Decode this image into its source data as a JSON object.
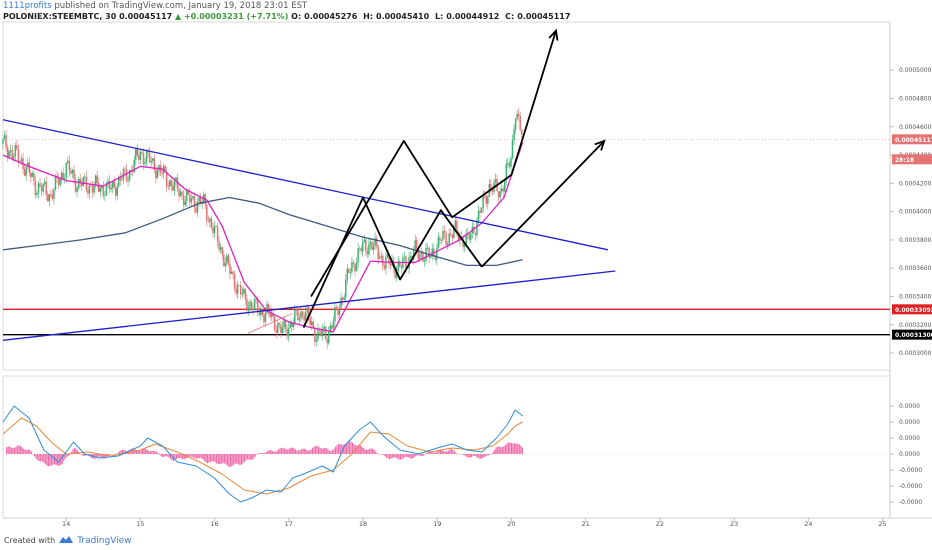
{
  "header": {
    "publisher": "1111profits",
    "published_text": "published on TradingView.com, January 19, 2018 23:01 EST",
    "symbol": "POLONIEX:STEEMBTC, 30",
    "open_val": "0.00045117",
    "change": "▲ +0.00003231 (+7.71%)",
    "o_label": "O:",
    "o": "0.00045276",
    "h_label": "H:",
    "h": "0.00045410",
    "l_label": "L:",
    "l": "0.00044912",
    "c_label": "C:",
    "c": "0.00045117"
  },
  "footer": {
    "created_with": "Created with",
    "brand": "TradingView"
  },
  "colors": {
    "candle_up": "#3cb371",
    "candle_down": "#e57373",
    "ma_fast": "#e020c0",
    "ma_slow": "#3d5a80",
    "trend": "#1f1fcc",
    "support_red": "#e02020",
    "support_black": "#000000",
    "macd": "#2f8fdf",
    "signal": "#e8893a",
    "hist": "#f06aa8"
  },
  "chart_data": [
    {
      "type": "candlestick",
      "x_ticks": [
        "14",
        "15",
        "16",
        "17",
        "18",
        "19",
        "20",
        "21",
        "22",
        "23",
        "24",
        "25"
      ],
      "y_ticks": [
        "0.00050000",
        "0.00048000",
        "0.00046000",
        "0.00044000",
        "0.00042000",
        "0.00040000",
        "0.00038000",
        "0.00036000",
        "0.00034000",
        "0.00032000",
        "0.00030000"
      ],
      "ylim": [
        0.000288,
        0.000532
      ],
      "xlim": [
        13.15,
        25.1
      ],
      "price_labels": [
        {
          "value": 0.00045117,
          "text": "0.00045117",
          "color": "#e57373"
        },
        {
          "value": 0.000437,
          "text": "28:18",
          "color": "#e57373"
        },
        {
          "value": 0.00033092,
          "text": "0.00033092",
          "color": "#e02020"
        },
        {
          "value": 0.000313,
          "text": "0.00031300",
          "color": "#000000"
        }
      ],
      "path": [
        [
          13.15,
          0.000448
        ],
        [
          13.4,
          0.000436
        ],
        [
          13.6,
          0.000418
        ],
        [
          13.8,
          0.000412
        ],
        [
          14.0,
          0.000432
        ],
        [
          14.15,
          0.00042
        ],
        [
          14.35,
          0.000418
        ],
        [
          14.6,
          0.000416
        ],
        [
          14.85,
          0.000428
        ],
        [
          15.0,
          0.000442
        ],
        [
          15.2,
          0.000432
        ],
        [
          15.45,
          0.000418
        ],
        [
          15.65,
          0.000408
        ],
        [
          15.85,
          0.000406
        ],
        [
          16.0,
          0.000385
        ],
        [
          16.2,
          0.000358
        ],
        [
          16.4,
          0.000338
        ],
        [
          16.6,
          0.00033
        ],
        [
          16.75,
          0.000327
        ],
        [
          16.9,
          0.000315
        ],
        [
          17.05,
          0.000322
        ],
        [
          17.2,
          0.00033
        ],
        [
          17.35,
          0.000315
        ],
        [
          17.5,
          0.000312
        ],
        [
          17.65,
          0.000328
        ],
        [
          17.8,
          0.000355
        ],
        [
          17.95,
          0.000372
        ],
        [
          18.1,
          0.000378
        ],
        [
          18.3,
          0.000364
        ],
        [
          18.5,
          0.00036
        ],
        [
          18.7,
          0.000372
        ],
        [
          18.9,
          0.000368
        ],
        [
          19.05,
          0.00038
        ],
        [
          19.25,
          0.000386
        ],
        [
          19.4,
          0.000378
        ],
        [
          19.55,
          0.000395
        ],
        [
          19.7,
          0.000418
        ],
        [
          19.85,
          0.000414
        ],
        [
          20.0,
          0.000438
        ],
        [
          20.05,
          0.000474
        ],
        [
          20.15,
          0.000451
        ]
      ],
      "ma_fast": [
        [
          13.15,
          0.00044
        ],
        [
          13.5,
          0.000432
        ],
        [
          14.0,
          0.000422
        ],
        [
          14.5,
          0.000418
        ],
        [
          15.0,
          0.000432
        ],
        [
          15.3,
          0.00043
        ],
        [
          15.6,
          0.000416
        ],
        [
          15.9,
          0.000408
        ],
        [
          16.1,
          0.00039
        ],
        [
          16.4,
          0.00035
        ],
        [
          16.7,
          0.00033
        ],
        [
          17.0,
          0.000322
        ],
        [
          17.3,
          0.000318
        ],
        [
          17.6,
          0.000315
        ],
        [
          17.85,
          0.00034
        ],
        [
          18.1,
          0.000365
        ],
        [
          18.4,
          0.000364
        ],
        [
          18.7,
          0.000364
        ],
        [
          19.0,
          0.000372
        ],
        [
          19.3,
          0.00038
        ],
        [
          19.6,
          0.000392
        ],
        [
          19.9,
          0.00041
        ],
        [
          20.15,
          0.000449
        ]
      ],
      "ma_slow": [
        [
          13.15,
          0.000373
        ],
        [
          13.6,
          0.000376
        ],
        [
          14.2,
          0.00038
        ],
        [
          14.8,
          0.000385
        ],
        [
          15.3,
          0.000395
        ],
        [
          15.8,
          0.000406
        ],
        [
          16.2,
          0.00041
        ],
        [
          16.6,
          0.000406
        ],
        [
          17.0,
          0.000398
        ],
        [
          17.5,
          0.00039
        ],
        [
          18.0,
          0.000382
        ],
        [
          18.5,
          0.000376
        ],
        [
          19.0,
          0.000368
        ],
        [
          19.4,
          0.000362
        ],
        [
          19.8,
          0.000362
        ],
        [
          20.15,
          0.000366
        ]
      ],
      "trendlines": [
        {
          "color": "#1f1fcc",
          "points": [
            [
              13.15,
              0.000465
            ],
            [
              21.3,
              0.000373
            ]
          ]
        },
        {
          "color": "#1f1fcc",
          "points": [
            [
              13.15,
              0.000309
            ],
            [
              21.4,
              0.000358
            ]
          ]
        },
        {
          "color": "#e57373",
          "points": [
            [
              16.45,
              0.000314
            ],
            [
              17.05,
              0.000328
            ]
          ]
        }
      ],
      "zigzags": [
        {
          "color": "#000000",
          "points": [
            [
              17.2,
              0.000318
            ],
            [
              18.0,
              0.00041
            ],
            [
              18.5,
              0.000352
            ],
            [
              19.05,
              0.000401
            ],
            [
              19.6,
              0.000361
            ]
          ]
        },
        {
          "color": "#000000",
          "points": [
            [
              17.3,
              0.00034
            ],
            [
              18.55,
              0.00045
            ],
            [
              19.2,
              0.000396
            ],
            [
              20.0,
              0.000426
            ]
          ]
        }
      ],
      "arrows": [
        {
          "color": "#000000",
          "from": [
            20.0,
            0.000426
          ],
          "to": [
            20.6,
            0.000528
          ]
        },
        {
          "color": "#000000",
          "from": [
            19.6,
            0.000361
          ],
          "to": [
            21.25,
            0.00045
          ]
        }
      ],
      "hlines": [
        {
          "value": 0.00033092,
          "color": "#e02020"
        },
        {
          "value": 0.000313,
          "color": "#000000"
        }
      ]
    },
    {
      "type": "macd",
      "y_ticks": [
        "0.0000",
        "0.0000",
        "0.0000",
        "0.0000",
        "-0.0000",
        "-0.0000",
        "-0.0000"
      ],
      "ylim": [
        -1.6,
        1.8
      ],
      "macd": [
        [
          13.15,
          0.8
        ],
        [
          13.3,
          1.2
        ],
        [
          13.5,
          0.9
        ],
        [
          13.7,
          0.1
        ],
        [
          13.9,
          -0.2
        ],
        [
          14.1,
          0.3
        ],
        [
          14.25,
          0.0
        ],
        [
          14.45,
          -0.1
        ],
        [
          14.7,
          -0.05
        ],
        [
          15.0,
          0.2
        ],
        [
          15.1,
          0.4
        ],
        [
          15.3,
          0.2
        ],
        [
          15.5,
          -0.2
        ],
        [
          15.75,
          -0.3
        ],
        [
          16.0,
          -0.6
        ],
        [
          16.2,
          -1.0
        ],
        [
          16.35,
          -1.2
        ],
        [
          16.5,
          -1.1
        ],
        [
          16.7,
          -0.9
        ],
        [
          16.9,
          -0.95
        ],
        [
          17.05,
          -0.6
        ],
        [
          17.2,
          -0.5
        ],
        [
          17.45,
          -0.3
        ],
        [
          17.6,
          -0.45
        ],
        [
          17.75,
          0.2
        ],
        [
          17.95,
          0.6
        ],
        [
          18.1,
          0.8
        ],
        [
          18.3,
          0.4
        ],
        [
          18.5,
          0.1
        ],
        [
          18.75,
          0.0
        ],
        [
          19.0,
          0.15
        ],
        [
          19.2,
          0.25
        ],
        [
          19.4,
          0.1
        ],
        [
          19.6,
          0.05
        ],
        [
          19.8,
          0.4
        ],
        [
          19.95,
          0.75
        ],
        [
          20.05,
          1.1
        ],
        [
          20.15,
          0.95
        ]
      ],
      "signal": [
        [
          13.15,
          0.5
        ],
        [
          13.4,
          0.9
        ],
        [
          13.6,
          0.7
        ],
        [
          13.8,
          0.3
        ],
        [
          14.0,
          0.0
        ],
        [
          14.3,
          0.05
        ],
        [
          14.6,
          -0.05
        ],
        [
          15.0,
          0.1
        ],
        [
          15.2,
          0.25
        ],
        [
          15.5,
          0.05
        ],
        [
          15.8,
          -0.2
        ],
        [
          16.1,
          -0.5
        ],
        [
          16.4,
          -0.9
        ],
        [
          16.7,
          -1.0
        ],
        [
          17.0,
          -0.85
        ],
        [
          17.3,
          -0.55
        ],
        [
          17.6,
          -0.4
        ],
        [
          17.85,
          0.0
        ],
        [
          18.1,
          0.55
        ],
        [
          18.35,
          0.5
        ],
        [
          18.6,
          0.2
        ],
        [
          18.9,
          0.05
        ],
        [
          19.2,
          0.15
        ],
        [
          19.5,
          0.1
        ],
        [
          19.75,
          0.2
        ],
        [
          19.95,
          0.5
        ],
        [
          20.05,
          0.7
        ],
        [
          20.15,
          0.8
        ]
      ],
      "histogram": [
        [
          13.2,
          0.15
        ],
        [
          13.35,
          0.2
        ],
        [
          13.5,
          0.1
        ],
        [
          13.65,
          -0.2
        ],
        [
          13.8,
          -0.3
        ],
        [
          13.95,
          -0.25
        ],
        [
          14.1,
          0.15
        ],
        [
          14.25,
          -0.05
        ],
        [
          14.4,
          -0.1
        ],
        [
          14.55,
          -0.08
        ],
        [
          14.7,
          0.05
        ],
        [
          14.85,
          0.12
        ],
        [
          15.0,
          0.1
        ],
        [
          15.15,
          0.1
        ],
        [
          15.3,
          -0.05
        ],
        [
          15.45,
          -0.15
        ],
        [
          15.6,
          -0.1
        ],
        [
          15.75,
          -0.08
        ],
        [
          15.9,
          -0.2
        ],
        [
          16.05,
          -0.22
        ],
        [
          16.2,
          -0.3
        ],
        [
          16.35,
          -0.25
        ],
        [
          16.5,
          -0.12
        ],
        [
          16.65,
          0.05
        ],
        [
          16.8,
          0.08
        ],
        [
          16.95,
          0.15
        ],
        [
          17.1,
          0.12
        ],
        [
          17.25,
          0.1
        ],
        [
          17.4,
          0.2
        ],
        [
          17.55,
          0.08
        ],
        [
          17.7,
          0.25
        ],
        [
          17.85,
          0.3
        ],
        [
          18.0,
          0.15
        ],
        [
          18.15,
          0.1
        ],
        [
          18.3,
          -0.08
        ],
        [
          18.45,
          -0.12
        ],
        [
          18.6,
          -0.1
        ],
        [
          18.75,
          -0.06
        ],
        [
          18.9,
          0.05
        ],
        [
          19.05,
          0.08
        ],
        [
          19.2,
          0.1
        ],
        [
          19.35,
          -0.05
        ],
        [
          19.5,
          -0.08
        ],
        [
          19.65,
          -0.1
        ],
        [
          19.8,
          0.15
        ],
        [
          19.95,
          0.25
        ],
        [
          20.05,
          0.3
        ],
        [
          20.15,
          0.15
        ]
      ]
    }
  ]
}
